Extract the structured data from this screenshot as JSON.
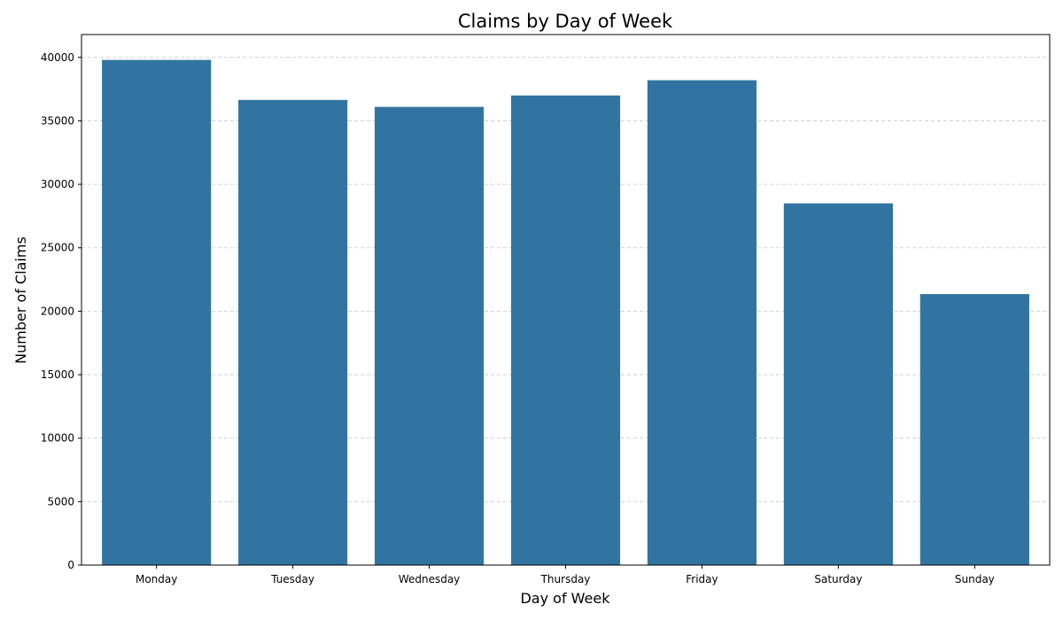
{
  "chart_data": {
    "type": "bar",
    "title": "Claims by Day of Week",
    "xlabel": "Day of Week",
    "ylabel": "Number of Claims",
    "categories": [
      "Monday",
      "Tuesday",
      "Wednesday",
      "Thursday",
      "Friday",
      "Saturday",
      "Sunday"
    ],
    "values": [
      39800,
      36650,
      36100,
      37000,
      38200,
      28500,
      21350
    ],
    "ylim": [
      0,
      41800
    ],
    "yticks": [
      0,
      5000,
      10000,
      15000,
      20000,
      25000,
      30000,
      35000,
      40000
    ],
    "grid": "y-dashed",
    "bar_color": "#3274a1",
    "grid_color": "#c8c8c8"
  }
}
